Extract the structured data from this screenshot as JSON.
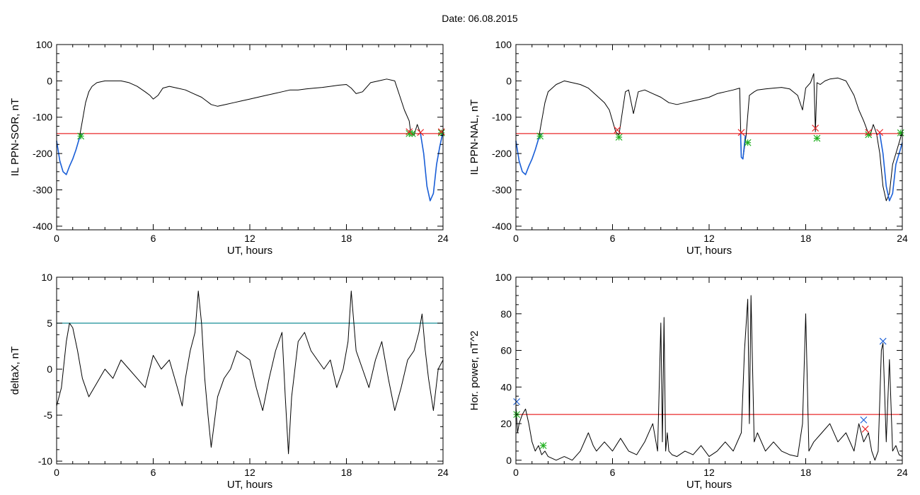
{
  "header": {
    "date_label": "Date:  06.08.2015"
  },
  "colors": {
    "black": "#000000",
    "red": "#e8282a",
    "blue": "#1a5fd8",
    "green": "#20b020",
    "teal": "#168e96"
  },
  "chart_data": [
    {
      "id": "sor",
      "type": "line",
      "ylabel": "IL PPN-SOR, nT",
      "xlabel": "UT, hours",
      "xlim": [
        0,
        24
      ],
      "ylim": [
        -410,
        100
      ],
      "xticks": [
        0,
        6,
        12,
        18,
        24
      ],
      "xtick_labels": [
        "0",
        "6",
        "12",
        "18",
        "24"
      ],
      "yticks": [
        100,
        0,
        -100,
        -200,
        -300,
        -400
      ],
      "ytick_labels": [
        "100",
        "0",
        "-100",
        "-200",
        "-300",
        "-400"
      ],
      "threshold": -145,
      "series": [
        {
          "color": "black",
          "x": [
            0,
            0.2,
            0.4,
            0.6,
            0.8,
            1.0,
            1.2,
            1.4,
            1.6,
            1.8,
            2.0,
            2.2,
            2.5,
            3.0,
            3.5,
            4.0,
            4.5,
            5.0,
            5.5,
            5.8,
            6.0,
            6.3,
            6.6,
            7.0,
            7.5,
            8.0,
            8.5,
            9.0,
            9.3,
            9.6,
            10.0,
            10.5,
            11.0,
            11.5,
            12.0,
            12.5,
            13.0,
            13.5,
            14.0,
            14.5,
            15.0,
            15.5,
            16.0,
            16.5,
            17.0,
            17.5,
            18.0,
            18.3,
            18.6,
            19.0,
            19.5,
            20.0,
            20.5,
            21.0,
            21.3,
            21.6,
            21.9,
            22.0,
            22.2,
            22.4,
            22.6,
            22.8,
            23.0,
            23.2,
            23.4,
            23.6,
            23.8,
            24.0
          ],
          "y": [
            -165,
            -220,
            -250,
            -258,
            -235,
            -215,
            -190,
            -160,
            -110,
            -60,
            -30,
            -15,
            -5,
            0,
            0,
            0,
            -5,
            -15,
            -30,
            -40,
            -50,
            -40,
            -20,
            -15,
            -20,
            -25,
            -35,
            -45,
            -55,
            -65,
            -70,
            -65,
            -60,
            -55,
            -50,
            -45,
            -40,
            -35,
            -30,
            -25,
            -25,
            -22,
            -20,
            -18,
            -15,
            -12,
            -10,
            -20,
            -35,
            -30,
            -5,
            0,
            5,
            0,
            -40,
            -80,
            -110,
            -145,
            -150,
            -120,
            -145,
            -200,
            -290,
            -330,
            -310,
            -230,
            -180,
            -140
          ]
        },
        {
          "color": "blue",
          "x": [
            0,
            0.2,
            0.4,
            0.6,
            0.8,
            1.0,
            1.2,
            1.4,
            1.6
          ],
          "y": [
            -165,
            -220,
            -250,
            -258,
            -235,
            -215,
            -190,
            -160,
            -145
          ]
        },
        {
          "color": "blue",
          "x": [
            22.6,
            22.8,
            23.0,
            23.2,
            23.4,
            23.6,
            23.8,
            24.0
          ],
          "y": [
            -145,
            -200,
            -290,
            -330,
            -310,
            -230,
            -180,
            -140
          ]
        }
      ],
      "markers": [
        {
          "color": "green",
          "symbol": "asterisk",
          "x": 1.5,
          "y": -152
        },
        {
          "color": "green",
          "symbol": "asterisk",
          "x": 21.9,
          "y": -145
        },
        {
          "color": "green",
          "symbol": "asterisk",
          "x": 22.1,
          "y": -145
        },
        {
          "color": "green",
          "symbol": "asterisk",
          "x": 23.9,
          "y": -143
        },
        {
          "color": "red",
          "symbol": "x",
          "x": 21.9,
          "y": -140
        },
        {
          "color": "red",
          "symbol": "x",
          "x": 22.6,
          "y": -142
        },
        {
          "color": "red",
          "symbol": "x",
          "x": 23.9,
          "y": -140
        }
      ]
    },
    {
      "id": "nal",
      "type": "line",
      "ylabel": "IL PPN-NAL, nT",
      "xlabel": "UT, hours",
      "xlim": [
        0,
        24
      ],
      "ylim": [
        -410,
        100
      ],
      "xticks": [
        0,
        6,
        12,
        18,
        24
      ],
      "xtick_labels": [
        "0",
        "6",
        "12",
        "18",
        "24"
      ],
      "yticks": [
        100,
        0,
        -100,
        -200,
        -300,
        -400
      ],
      "ytick_labels": [
        "100",
        "0",
        "-100",
        "-200",
        "-300",
        "-400"
      ],
      "threshold": -145,
      "series": [
        {
          "color": "black",
          "x": [
            0,
            0.2,
            0.4,
            0.6,
            0.8,
            1.0,
            1.2,
            1.4,
            1.6,
            1.8,
            2.0,
            2.5,
            3.0,
            3.5,
            4.0,
            4.5,
            5.0,
            5.5,
            5.8,
            6.0,
            6.2,
            6.4,
            6.6,
            6.8,
            7.0,
            7.3,
            7.6,
            8.0,
            8.5,
            9.0,
            9.5,
            10.0,
            10.5,
            11.0,
            11.5,
            12.0,
            12.5,
            13.0,
            13.5,
            13.9,
            14.0,
            14.1,
            14.3,
            14.5,
            14.8,
            15.0,
            15.5,
            16.0,
            16.5,
            17.0,
            17.5,
            17.8,
            18.0,
            18.3,
            18.5,
            18.6,
            18.7,
            18.9,
            19.2,
            19.5,
            20.0,
            20.5,
            21.0,
            21.3,
            21.6,
            21.9,
            22.0,
            22.2,
            22.4,
            22.6,
            22.8,
            23.0,
            23.2,
            23.4,
            23.6,
            23.8,
            24.0
          ],
          "y": [
            -165,
            -220,
            -250,
            -258,
            -235,
            -215,
            -190,
            -160,
            -110,
            -60,
            -30,
            -10,
            0,
            -5,
            -10,
            -20,
            -40,
            -60,
            -80,
            -110,
            -140,
            -150,
            -90,
            -30,
            -25,
            -90,
            -30,
            -25,
            -35,
            -45,
            -60,
            -65,
            -60,
            -55,
            -50,
            -45,
            -35,
            -30,
            -25,
            -20,
            -210,
            -215,
            -150,
            -40,
            -30,
            -25,
            -22,
            -20,
            -18,
            -22,
            -40,
            -80,
            -20,
            -5,
            20,
            -140,
            -5,
            -10,
            0,
            5,
            8,
            0,
            -40,
            -80,
            -110,
            -145,
            -150,
            -120,
            -145,
            -200,
            -290,
            -330,
            -310,
            -230,
            -200,
            -170,
            -140
          ]
        },
        {
          "color": "blue",
          "x": [
            0,
            0.2,
            0.4,
            0.6,
            0.8,
            1.0,
            1.2,
            1.4,
            1.6
          ],
          "y": [
            -165,
            -220,
            -250,
            -258,
            -235,
            -215,
            -190,
            -160,
            -145
          ]
        },
        {
          "color": "blue",
          "x": [
            13.95,
            14.0,
            14.1,
            14.25
          ],
          "y": [
            -145,
            -210,
            -215,
            -150
          ]
        },
        {
          "color": "blue",
          "x": [
            22.6,
            22.8,
            23.0,
            23.2,
            23.4,
            23.6,
            23.8,
            24.0
          ],
          "y": [
            -145,
            -200,
            -290,
            -330,
            -310,
            -230,
            -200,
            -170
          ]
        }
      ],
      "markers": [
        {
          "color": "green",
          "symbol": "asterisk",
          "x": 1.5,
          "y": -152
        },
        {
          "color": "green",
          "symbol": "asterisk",
          "x": 6.4,
          "y": -155
        },
        {
          "color": "green",
          "symbol": "asterisk",
          "x": 14.4,
          "y": -170
        },
        {
          "color": "green",
          "symbol": "asterisk",
          "x": 18.7,
          "y": -158
        },
        {
          "color": "green",
          "symbol": "asterisk",
          "x": 21.9,
          "y": -148
        },
        {
          "color": "green",
          "symbol": "asterisk",
          "x": 23.9,
          "y": -143
        },
        {
          "color": "red",
          "symbol": "x",
          "x": 6.3,
          "y": -135
        },
        {
          "color": "red",
          "symbol": "x",
          "x": 14.0,
          "y": -142
        },
        {
          "color": "red",
          "symbol": "x",
          "x": 18.6,
          "y": -130
        },
        {
          "color": "red",
          "symbol": "x",
          "x": 21.9,
          "y": -142
        },
        {
          "color": "red",
          "symbol": "x",
          "x": 22.6,
          "y": -142
        }
      ]
    },
    {
      "id": "deltax",
      "type": "line",
      "ylabel": "deltaX, nT",
      "xlabel": "UT, hours",
      "xlim": [
        0,
        24
      ],
      "ylim": [
        -10.3,
        10
      ],
      "xticks": [
        0,
        6,
        12,
        18,
        24
      ],
      "xtick_labels": [
        "0",
        "6",
        "12",
        "18",
        "24"
      ],
      "yticks": [
        10,
        5,
        0,
        -5,
        -10
      ],
      "ytick_labels": [
        "10",
        "5",
        "0",
        "-5",
        "-10"
      ],
      "threshold": 5,
      "threshold_color": "teal",
      "series": [
        {
          "color": "black",
          "x": [
            0,
            0.3,
            0.6,
            0.8,
            1.0,
            1.3,
            1.6,
            2.0,
            2.5,
            3.0,
            3.5,
            4.0,
            4.5,
            5.0,
            5.5,
            6.0,
            6.5,
            7.0,
            7.5,
            7.8,
            8.0,
            8.3,
            8.6,
            8.8,
            9.0,
            9.2,
            9.4,
            9.6,
            10.0,
            10.4,
            10.8,
            11.2,
            11.6,
            12.0,
            12.4,
            12.8,
            13.2,
            13.6,
            14.0,
            14.2,
            14.4,
            14.6,
            15.0,
            15.4,
            15.8,
            16.2,
            16.6,
            17.0,
            17.4,
            17.8,
            18.1,
            18.3,
            18.6,
            19.0,
            19.4,
            19.8,
            20.2,
            20.6,
            21.0,
            21.4,
            21.8,
            22.2,
            22.5,
            22.7,
            22.9,
            23.1,
            23.4,
            23.7,
            24.0
          ],
          "y": [
            -4,
            -2,
            3,
            5,
            4.5,
            2,
            -1,
            -3,
            -1.5,
            0,
            -1,
            1,
            0,
            -1,
            -2,
            1.5,
            0,
            1,
            -2,
            -4,
            -1,
            2,
            4,
            8.5,
            5,
            -1,
            -5,
            -8.5,
            -3,
            -1,
            0,
            2,
            1.5,
            1,
            -2,
            -4.5,
            -1,
            2,
            4,
            -3,
            -9.2,
            -3,
            3,
            4,
            2,
            1,
            0,
            1,
            -2,
            0,
            3,
            8.5,
            2,
            0,
            -2,
            1,
            3,
            -1,
            -4.5,
            -2,
            1,
            2,
            4,
            6,
            2,
            -1,
            -4.5,
            0,
            1
          ]
        }
      ],
      "markers": []
    },
    {
      "id": "power",
      "type": "line",
      "ylabel": "Hor. power, nT^2",
      "xlabel": "UT, hours",
      "xlim": [
        0,
        24
      ],
      "ylim": [
        -2,
        100
      ],
      "xticks": [
        0,
        6,
        12,
        18,
        24
      ],
      "xtick_labels": [
        "0",
        "6",
        "12",
        "18",
        "24"
      ],
      "yticks": [
        100,
        80,
        60,
        40,
        20,
        0
      ],
      "ytick_labels": [
        "100",
        "80",
        "60",
        "40",
        "20",
        "0"
      ],
      "threshold": 25,
      "series": [
        {
          "color": "black",
          "x": [
            0,
            0.1,
            0.2,
            0.4,
            0.6,
            0.8,
            1.0,
            1.2,
            1.4,
            1.6,
            1.8,
            2.0,
            2.5,
            3.0,
            3.5,
            4.0,
            4.5,
            4.8,
            5.0,
            5.5,
            6.0,
            6.5,
            7.0,
            7.5,
            8.0,
            8.5,
            8.8,
            9.0,
            9.1,
            9.2,
            9.3,
            9.4,
            9.5,
            9.7,
            10.0,
            10.5,
            11.0,
            11.5,
            12.0,
            12.5,
            13.0,
            13.5,
            14.0,
            14.2,
            14.4,
            14.5,
            14.6,
            14.8,
            15.0,
            15.5,
            16.0,
            16.5,
            17.0,
            17.5,
            17.8,
            18.0,
            18.2,
            18.5,
            19.0,
            19.5,
            20.0,
            20.5,
            21.0,
            21.3,
            21.6,
            21.9,
            22.1,
            22.3,
            22.5,
            22.7,
            22.8,
            23.0,
            23.2,
            23.4,
            23.6,
            23.8,
            24.0
          ],
          "y": [
            30,
            15,
            20,
            25,
            28,
            20,
            10,
            5,
            8,
            3,
            5,
            2,
            0,
            2,
            0,
            5,
            15,
            8,
            5,
            10,
            5,
            12,
            5,
            3,
            10,
            20,
            5,
            75,
            10,
            78,
            5,
            15,
            5,
            3,
            2,
            5,
            3,
            8,
            2,
            5,
            10,
            5,
            15,
            60,
            88,
            20,
            90,
            10,
            15,
            5,
            10,
            5,
            3,
            2,
            20,
            80,
            5,
            10,
            15,
            20,
            10,
            15,
            5,
            20,
            10,
            15,
            5,
            0,
            5,
            60,
            64,
            10,
            55,
            5,
            8,
            3,
            2
          ]
        }
      ],
      "markers": [
        {
          "color": "blue",
          "symbol": "x",
          "x": 0.05,
          "y": 32
        },
        {
          "color": "blue",
          "symbol": "x",
          "x": 21.6,
          "y": 22
        },
        {
          "color": "blue",
          "symbol": "x",
          "x": 22.8,
          "y": 65
        },
        {
          "color": "red",
          "symbol": "x",
          "x": 21.7,
          "y": 17
        },
        {
          "color": "green",
          "symbol": "asterisk",
          "x": 1.7,
          "y": 8
        },
        {
          "color": "green",
          "symbol": "asterisk",
          "x": 0.05,
          "y": 25
        }
      ]
    }
  ]
}
